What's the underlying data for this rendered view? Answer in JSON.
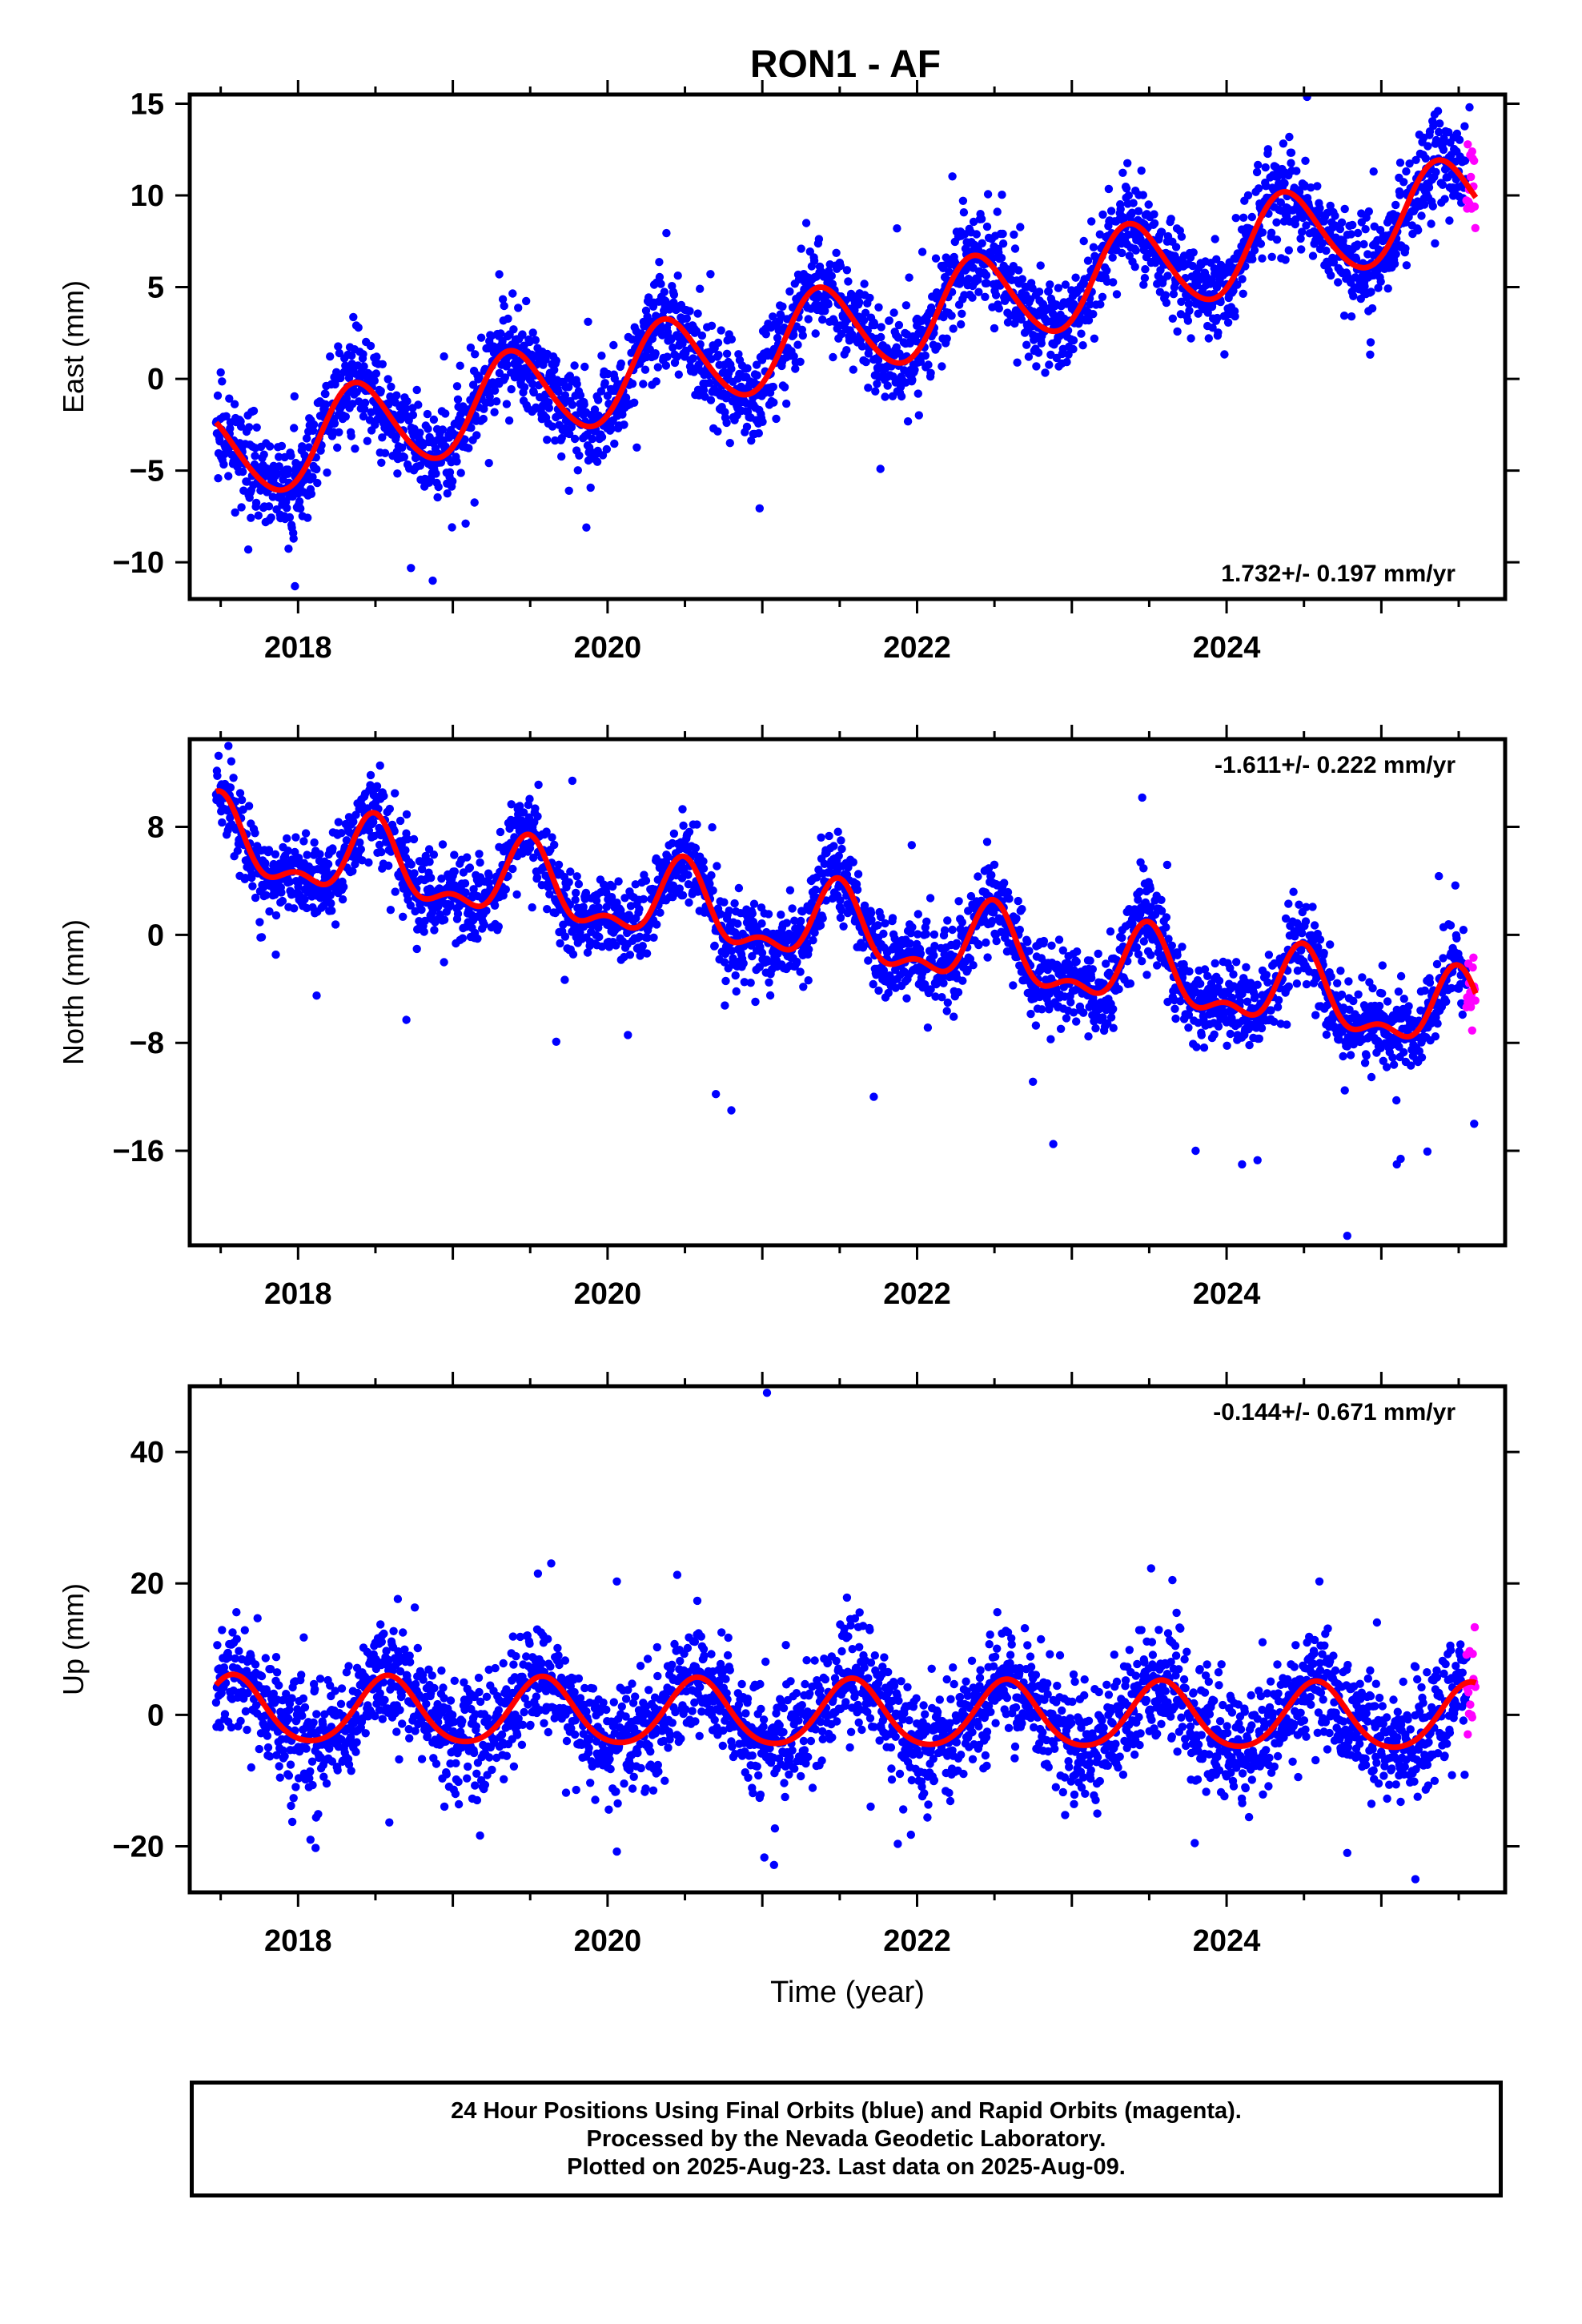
{
  "title": "RON1 - AF",
  "colors": {
    "final_orbits": "#0000ff",
    "rapid_orbits": "#ff00ff",
    "model_fit": "#ff0000",
    "frame": "#000000"
  },
  "chart_data": [
    {
      "type": "scatter",
      "component": "East",
      "ylabel": "East (mm)",
      "xlabel": "",
      "xlim": [
        2017.3,
        2025.8
      ],
      "ylim": [
        -12,
        15.5
      ],
      "xticks": [
        2018,
        2020,
        2022,
        2024
      ],
      "yticks": [
        -10,
        -5,
        0,
        5,
        10,
        15
      ],
      "rate_label": "1.732+/- 0.197 mm/yr",
      "rate_label_position": "bottom-right",
      "model": {
        "rate": 1.732,
        "offset": 2.6,
        "ref_year": 2021.5,
        "annual_amp": 2.5,
        "annual_phase_peak": 0.38,
        "semiannual_amp": 0.2,
        "semiannual_phase_peak": 0.3
      },
      "scatter_sigma": 1.3,
      "x_start": 2017.47,
      "x_end": 2025.55,
      "rapid_start": 2025.55,
      "rapid_end": 2025.61,
      "outliers": [
        {
          "x": 2019.3,
          "y": 5.7
        },
        {
          "x": 2021.87,
          "y": 8.2
        },
        {
          "x": 2024.95,
          "y": 11.3
        },
        {
          "x": 2025.57,
          "y": 14.8
        },
        {
          "x": 2018.87,
          "y": -11.0
        },
        {
          "x": 2017.98,
          "y": -11.3
        }
      ]
    },
    {
      "type": "scatter",
      "component": "North",
      "ylabel": "North (mm)",
      "xlabel": "",
      "xlim": [
        2017.3,
        2025.8
      ],
      "ylim": [
        -23,
        14.5
      ],
      "xticks": [
        2018,
        2020,
        2022,
        2024
      ],
      "yticks": [
        -16,
        -8,
        0,
        8
      ],
      "rate_label": "-1.611+/- 0.222 mm/yr",
      "rate_label_position": "top-right",
      "model": {
        "rate": -1.611,
        "offset": 0.3,
        "ref_year": 2021.5,
        "annual_amp": 2.6,
        "annual_phase_peak": 0.49,
        "semiannual_amp": 1.3,
        "semiannual_phase_peak": 0.49
      },
      "scatter_sigma": 1.5,
      "x_start": 2017.47,
      "x_end": 2025.55,
      "rapid_start": 2025.55,
      "rapid_end": 2025.61,
      "outliers": [
        {
          "x": 2020.7,
          "y": -11.8
        },
        {
          "x": 2020.8,
          "y": -13.0
        },
        {
          "x": 2021.72,
          "y": -12.0
        },
        {
          "x": 2022.88,
          "y": -15.5
        },
        {
          "x": 2023.8,
          "y": -16.0
        },
        {
          "x": 2024.1,
          "y": -17.0
        },
        {
          "x": 2024.2,
          "y": -16.7
        },
        {
          "x": 2024.78,
          "y": -22.3
        },
        {
          "x": 2025.1,
          "y": -17.0
        },
        {
          "x": 2025.6,
          "y": -14.0
        },
        {
          "x": 2017.55,
          "y": 14.0
        },
        {
          "x": 2018.12,
          "y": -4.5
        },
        {
          "x": 2018.7,
          "y": -6.3
        }
      ]
    },
    {
      "type": "scatter",
      "component": "Up",
      "ylabel": "Up (mm)",
      "xlabel": "Time (year)",
      "xlim": [
        2017.3,
        2025.8
      ],
      "ylim": [
        -27,
        50
      ],
      "xticks": [
        2018,
        2020,
        2022,
        2024
      ],
      "yticks": [
        -20,
        0,
        20,
        40
      ],
      "rate_label": "-0.144+/- 0.671 mm/yr",
      "rate_label_position": "top-right",
      "model": {
        "rate": -0.144,
        "offset": 0.0,
        "ref_year": 2021.5,
        "annual_amp": 5.0,
        "annual_phase_peak": 0.58,
        "semiannual_amp": 0.6,
        "semiannual_phase_peak": 0.58
      },
      "scatter_sigma": 4.3,
      "x_start": 2017.47,
      "x_end": 2025.55,
      "rapid_start": 2025.55,
      "rapid_end": 2025.61,
      "outliers": [
        {
          "x": 2021.03,
          "y": 49.0
        },
        {
          "x": 2019.55,
          "y": 21.5
        },
        {
          "x": 2020.45,
          "y": 21.3
        },
        {
          "x": 2023.65,
          "y": 20.5
        },
        {
          "x": 2024.6,
          "y": 20.3
        },
        {
          "x": 2020.06,
          "y": -20.8
        },
        {
          "x": 2024.78,
          "y": -21.0
        },
        {
          "x": 2025.22,
          "y": -25.0
        },
        {
          "x": 2018.08,
          "y": -19.0
        }
      ]
    }
  ],
  "footer": {
    "line1": "24 Hour Positions Using Final Orbits (blue) and Rapid Orbits (magenta).",
    "line2": "Processed by the Nevada Geodetic Laboratory.",
    "line3": "Plotted on 2025-Aug-23. Last data on 2025-Aug-09."
  }
}
